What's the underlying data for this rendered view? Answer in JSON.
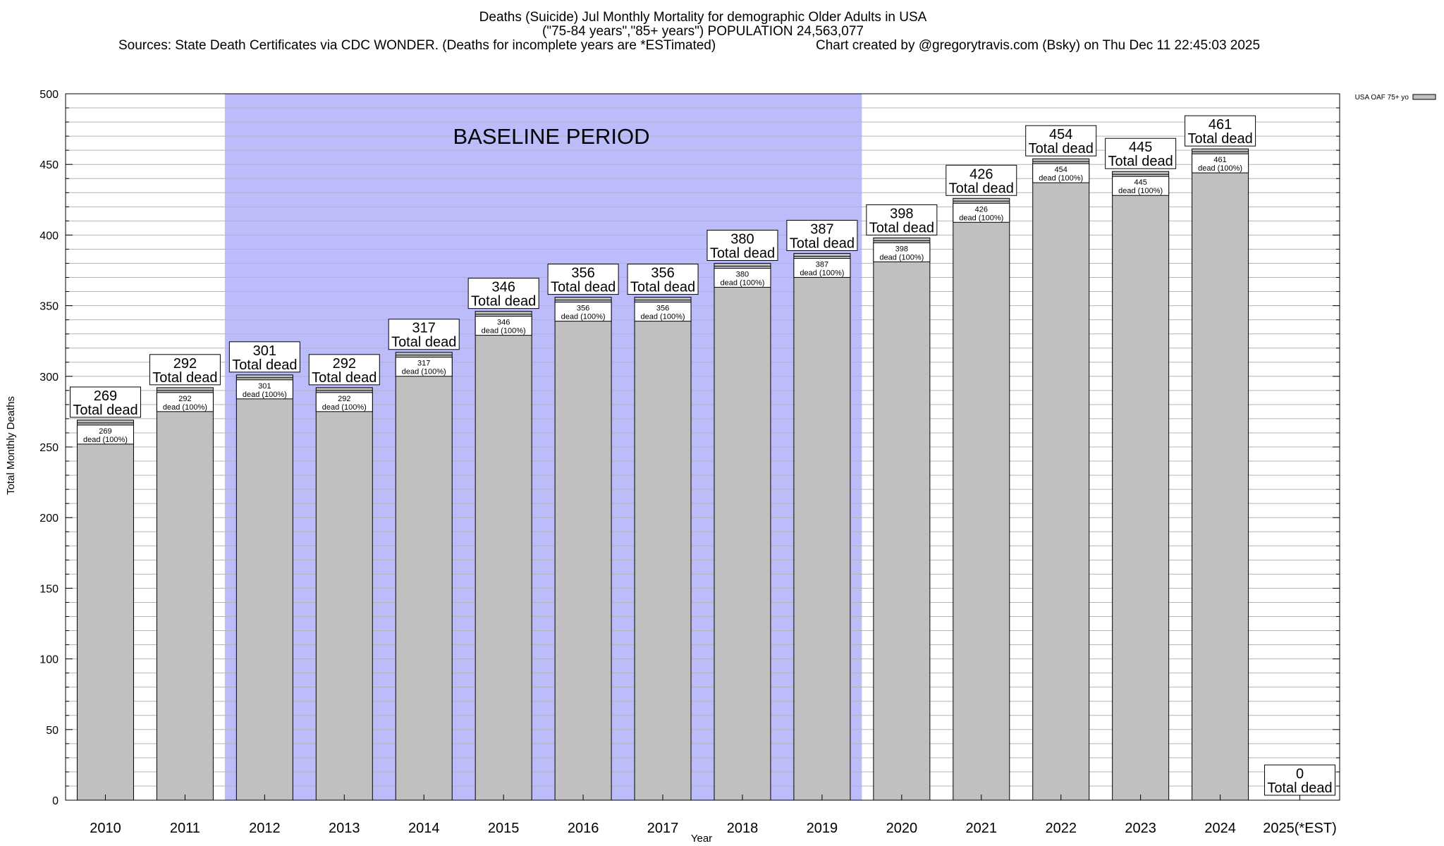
{
  "header": {
    "title_line1": "Deaths (Suicide) Jul Monthly Mortality for demographic Older Adults in USA",
    "title_line2": "(\"75-84 years\",\"85+ years\") POPULATION 24,563,077",
    "sources": "Sources: State Death Certificates via CDC WONDER. (Deaths for incomplete years are *ESTimated)",
    "credit": "Chart created by @gregorytravis.com (Bsky) on Thu Dec 11 22:45:03 2025"
  },
  "chart_data": {
    "type": "bar",
    "xlabel": "Year",
    "ylabel": "Total Monthly Deaths",
    "ylim": [
      0,
      500
    ],
    "y_ticks": [
      0,
      50,
      100,
      150,
      200,
      250,
      300,
      350,
      400,
      450,
      500
    ],
    "grid": true,
    "legend": {
      "label": "USA OAF 75+ yo",
      "placement": "top-right"
    },
    "baseline_label": "BASELINE PERIOD",
    "baseline_categories": [
      "2012",
      "2019"
    ],
    "categories": [
      "2010",
      "2011",
      "2012",
      "2013",
      "2014",
      "2015",
      "2016",
      "2017",
      "2018",
      "2019",
      "2020",
      "2021",
      "2022",
      "2023",
      "2024",
      "2025(*EST)"
    ],
    "values": [
      269,
      292,
      301,
      292,
      317,
      346,
      356,
      356,
      380,
      387,
      398,
      426,
      454,
      445,
      461,
      0
    ],
    "total_label": "Total dead",
    "inner_label": "dead (100%)"
  },
  "colors": {
    "bar": "#c0c0c0",
    "baseline": "#bcbcfa",
    "grid": "#b4b4b4"
  }
}
